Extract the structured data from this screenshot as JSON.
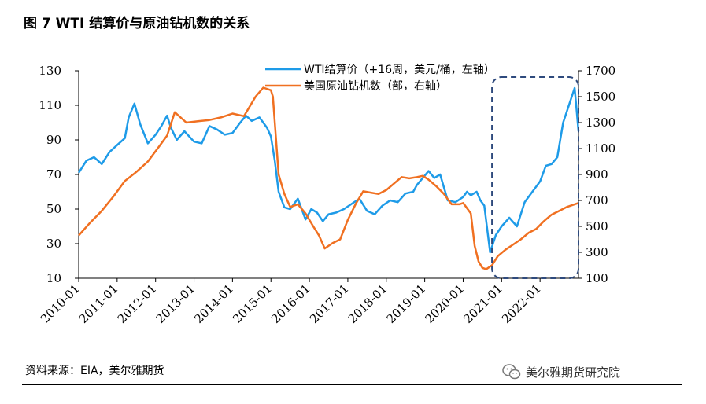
{
  "header": {
    "title": "图 7 WTI 结算价与原油钻机数的关系"
  },
  "footer": {
    "source": "资料来源：EIA，美尔雅期货",
    "brand": "美尔雅期货研究院"
  },
  "chart_data": {
    "type": "line",
    "title": "图 7 WTI 结算价与原油钻机数的关系",
    "xlabel": "",
    "ylabel_left": "",
    "ylabel_right": "",
    "x_ticks": [
      "2010-01",
      "2011-01",
      "2012-01",
      "2013-01",
      "2014-01",
      "2015-01",
      "2016-01",
      "2017-01",
      "2018-01",
      "2019-01",
      "2020-01",
      "2021-01",
      "2022-01"
    ],
    "xlim": [
      2010.0,
      2023.0
    ],
    "ylim_left": [
      10,
      130
    ],
    "yticks_left": [
      10,
      30,
      50,
      70,
      90,
      110,
      130
    ],
    "ylim_right": [
      100,
      1700
    ],
    "yticks_right": [
      100,
      300,
      500,
      700,
      900,
      1100,
      1300,
      1500,
      1700
    ],
    "legend_position": "top-center",
    "annotation": "dashed rounded box highlighting 2020-09 to 2022-12",
    "series": [
      {
        "name": "WTI结算价（+16周，美元/桶，左轴）",
        "axis": "left",
        "color": "#1E9BE8",
        "x": [
          2010.0,
          2010.2,
          2010.4,
          2010.6,
          2010.8,
          2011.0,
          2011.2,
          2011.3,
          2011.45,
          2011.6,
          2011.8,
          2012.0,
          2012.15,
          2012.3,
          2012.4,
          2012.55,
          2012.75,
          2013.0,
          2013.2,
          2013.4,
          2013.6,
          2013.8,
          2014.0,
          2014.2,
          2014.35,
          2014.5,
          2014.7,
          2014.9,
          2015.0,
          2015.1,
          2015.2,
          2015.35,
          2015.5,
          2015.7,
          2015.9,
          2016.05,
          2016.2,
          2016.35,
          2016.5,
          2016.7,
          2016.9,
          2017.1,
          2017.3,
          2017.5,
          2017.7,
          2017.9,
          2018.1,
          2018.3,
          2018.5,
          2018.7,
          2018.8,
          2018.95,
          2019.1,
          2019.25,
          2019.4,
          2019.6,
          2019.8,
          2020.0,
          2020.1,
          2020.2,
          2020.35,
          2020.45,
          2020.55,
          2020.7,
          2020.85,
          2021.0,
          2021.2,
          2021.4,
          2021.6,
          2021.8,
          2022.0,
          2022.15,
          2022.3,
          2022.45,
          2022.6,
          2022.75,
          2022.9,
          2023.0
        ],
        "y": [
          71,
          78,
          80,
          76,
          83,
          87,
          91,
          103,
          111,
          99,
          88,
          93,
          98,
          104,
          97,
          90,
          95,
          89,
          88,
          98,
          96,
          93,
          94,
          100,
          104,
          101,
          103,
          97,
          92,
          78,
          60,
          51,
          50,
          56,
          44,
          50,
          48,
          43,
          47,
          48,
          50,
          53,
          56,
          49,
          47,
          52,
          55,
          54,
          59,
          60,
          64,
          68,
          72,
          68,
          70,
          55,
          54,
          57,
          60,
          58,
          60,
          55,
          52,
          25,
          35,
          40,
          45,
          40,
          54,
          60,
          66,
          75,
          76,
          80,
          100,
          110,
          120,
          95
        ],
        "note": "WTI shifted forward 16 weeks; values read from left axis"
      },
      {
        "name": "美国原油钻机数（部，右轴）",
        "axis": "right",
        "color": "#F07021",
        "x": [
          2010.0,
          2010.3,
          2010.6,
          2010.9,
          2011.2,
          2011.5,
          2011.8,
          2012.1,
          2012.3,
          2012.5,
          2012.8,
          2013.1,
          2013.4,
          2013.7,
          2014.0,
          2014.3,
          2014.6,
          2014.8,
          2015.0,
          2015.05,
          2015.2,
          2015.35,
          2015.5,
          2015.7,
          2015.9,
          2016.1,
          2016.25,
          2016.4,
          2016.6,
          2016.8,
          2017.0,
          2017.2,
          2017.4,
          2017.6,
          2017.8,
          2018.0,
          2018.2,
          2018.4,
          2018.6,
          2018.8,
          2018.95,
          2019.1,
          2019.3,
          2019.5,
          2019.7,
          2019.9,
          2020.0,
          2020.2,
          2020.3,
          2020.4,
          2020.5,
          2020.6,
          2020.75,
          2020.9,
          2021.1,
          2021.3,
          2021.5,
          2021.7,
          2021.9,
          2022.1,
          2022.3,
          2022.5,
          2022.7,
          2022.9,
          2023.0
        ],
        "y": [
          430,
          530,
          620,
          730,
          850,
          920,
          1000,
          1120,
          1200,
          1380,
          1300,
          1310,
          1320,
          1340,
          1370,
          1350,
          1500,
          1570,
          1550,
          1500,
          900,
          750,
          650,
          670,
          600,
          500,
          430,
          330,
          370,
          400,
          550,
          670,
          770,
          760,
          750,
          780,
          830,
          880,
          870,
          880,
          890,
          860,
          810,
          750,
          670,
          670,
          680,
          600,
          350,
          230,
          180,
          170,
          200,
          270,
          320,
          360,
          400,
          450,
          480,
          540,
          590,
          620,
          650,
          670,
          680
        ]
      }
    ]
  }
}
